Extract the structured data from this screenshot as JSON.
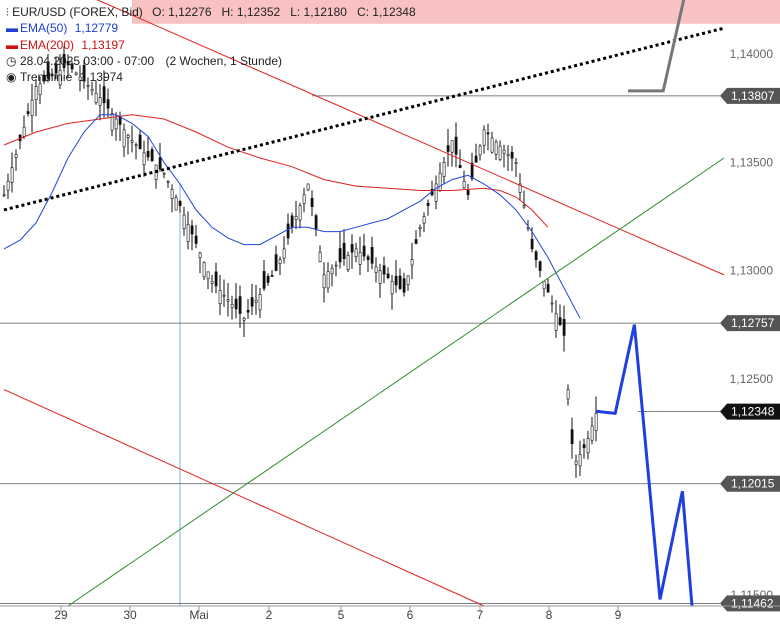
{
  "legend": {
    "symbol": "EUR/USD (FOREX, Bid)",
    "ohlc": "O: 1,12276   H: 1,12352   L: 1,12180   C: 1,12348",
    "ema50_label": "EMA(50)",
    "ema50_value": "1,12779",
    "ema200_label": "EMA(200)",
    "ema200_value": "1,13197",
    "period": "28.04.2025 03:00 - 07:00",
    "interval": "(2 Wochen, 1 Stunde)",
    "trend_label": "Trendlinie",
    "trend_value": "1,13974"
  },
  "chart_data": {
    "type": "candlestick",
    "instrument": "EUR/USD (FOREX, Bid)",
    "ylim": [
      1.1145,
      1.1425
    ],
    "y_ticks": [
      "1,14000",
      "1,13500",
      "1,13000",
      "1,12500",
      "1,11500"
    ],
    "x_ticks": [
      "29",
      "30",
      "Mai",
      "2",
      "5",
      "6",
      "7",
      "8",
      "9"
    ],
    "price_boxes": [
      "1,13807",
      "1,12757",
      "1,12348",
      "1,12015",
      "1,11462"
    ],
    "levels": [
      1.13807,
      1.12757,
      1.12348,
      1.12015,
      1.11462
    ],
    "ema50": [
      [
        0,
        1.131
      ],
      [
        1,
        1.1314
      ],
      [
        2,
        1.1322
      ],
      [
        3,
        1.1336
      ],
      [
        4,
        1.1352
      ],
      [
        5,
        1.1364
      ],
      [
        6,
        1.1372
      ],
      [
        7,
        1.1372
      ],
      [
        8,
        1.1368
      ],
      [
        9,
        1.1362
      ],
      [
        10,
        1.135
      ],
      [
        11,
        1.134
      ],
      [
        12,
        1.1328
      ],
      [
        13,
        1.132
      ],
      [
        14,
        1.1315
      ],
      [
        15,
        1.1312
      ],
      [
        16,
        1.1312
      ],
      [
        17,
        1.1316
      ],
      [
        18,
        1.132
      ],
      [
        19,
        1.132
      ],
      [
        20,
        1.1318
      ],
      [
        21,
        1.1318
      ],
      [
        22,
        1.132
      ],
      [
        23,
        1.1322
      ],
      [
        24,
        1.1324
      ],
      [
        25,
        1.1328
      ],
      [
        26,
        1.1332
      ],
      [
        27,
        1.1338
      ],
      [
        28,
        1.1342
      ],
      [
        29,
        1.1344
      ],
      [
        30,
        1.134
      ],
      [
        31,
        1.1335
      ],
      [
        32,
        1.1328
      ],
      [
        33,
        1.1318
      ],
      [
        34,
        1.1306
      ],
      [
        35,
        1.1292
      ],
      [
        36,
        1.1278
      ]
    ],
    "ema200": [
      [
        0,
        1.1358
      ],
      [
        2,
        1.1364
      ],
      [
        4,
        1.1368
      ],
      [
        6,
        1.137
      ],
      [
        8,
        1.1372
      ],
      [
        10,
        1.137
      ],
      [
        12,
        1.1364
      ],
      [
        14,
        1.1357
      ],
      [
        16,
        1.1352
      ],
      [
        18,
        1.1348
      ],
      [
        20,
        1.1342
      ],
      [
        22,
        1.1339
      ],
      [
        24,
        1.1338
      ],
      [
        26,
        1.1337
      ],
      [
        28,
        1.1337
      ],
      [
        30,
        1.1338
      ],
      [
        31,
        1.1337
      ],
      [
        32,
        1.1334
      ],
      [
        33,
        1.1328
      ],
      [
        34,
        1.132
      ]
    ],
    "trendline_dotted": [
      [
        0,
        1.1328
      ],
      [
        45,
        1.1412
      ]
    ],
    "red_line_upper": [
      [
        0,
        1.1444
      ],
      [
        45,
        1.1298
      ]
    ],
    "red_line_lower": [
      [
        0,
        1.1245
      ],
      [
        30,
        1.1145
      ]
    ],
    "green_line": [
      [
        4,
        1.1145
      ],
      [
        45,
        1.1352
      ]
    ],
    "forecast_blue": [
      [
        37,
        1.1235
      ],
      [
        38.2,
        1.1234
      ],
      [
        39.4,
        1.1275
      ],
      [
        41,
        1.1148
      ],
      [
        42.4,
        1.1198
      ],
      [
        43,
        1.1145
      ]
    ],
    "forecast_grey_arrow": [
      [
        39,
        1.1383
      ],
      [
        41.2,
        1.1383
      ],
      [
        42.6,
        1.1429
      ]
    ],
    "resistance_zone": [
      1.1414,
      1.1425
    ],
    "vertical_marker_x": 11
  }
}
